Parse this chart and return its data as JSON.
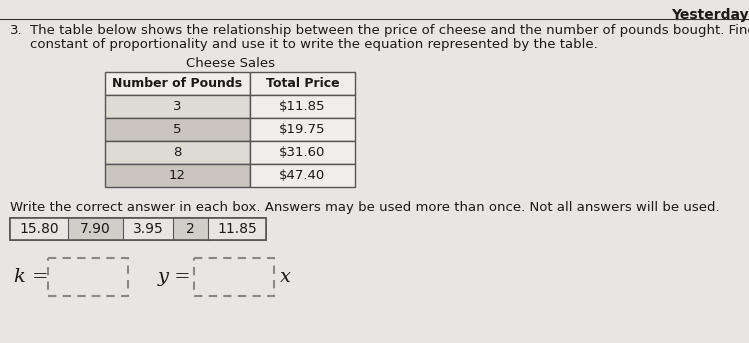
{
  "title": "Yesterday",
  "problem_number": "3.",
  "problem_text_line1": "The table below shows the relationship between the price of cheese and the number of pounds bought. Find the",
  "problem_text_line2": "constant of proportionality and use it to write the equation represented by the table.",
  "table_title": "Cheese Sales",
  "table_headers": [
    "Number of Pounds",
    "Total Price"
  ],
  "table_rows": [
    [
      "3",
      "$11.85"
    ],
    [
      "5",
      "$19.75"
    ],
    [
      "8",
      "$31.60"
    ],
    [
      "12",
      "$47.40"
    ]
  ],
  "answer_box_label": "Write the correct answer in each box. Answers may be used more than once. Not all answers will be used.",
  "answer_choices": [
    "15.80",
    "7.90",
    "3.95",
    "2",
    "11.85"
  ],
  "k_label": "k =",
  "y_label": "y =",
  "x_label": "x",
  "bg_color": "#e8e6e2",
  "table_header_bg": "#f0eeea",
  "table_row_odd": "#dedad4",
  "table_row_even": "#cac6bf",
  "table_price_bg": "#f0eeea",
  "text_color": "#1a1a1a",
  "answer_choices_bg": "#e8e6e2",
  "answer_choice_shade": "#d0cec8",
  "input_box_bg": "#e8e6e2",
  "border_color": "#555555",
  "title_line_color": "#333333"
}
